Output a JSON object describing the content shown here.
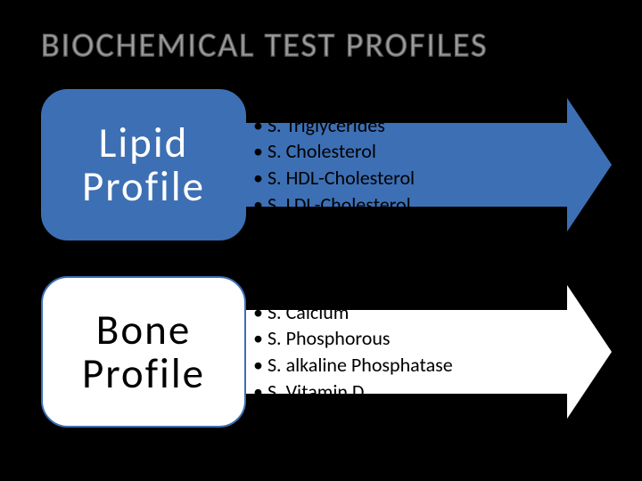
{
  "title": "BIOCHEMICAL TEST PROFILES",
  "profiles": [
    {
      "name_line1": "Lipid",
      "name_line2": "Profile",
      "pill_bg": "#3d6fb4",
      "pill_text_color": "#ffffff",
      "arrow_color": "#3d6fb4",
      "items": [
        "S. Triglycerides",
        "S. Cholesterol",
        "S. HDL-Cholesterol",
        "S. LDL-Cholesterol"
      ]
    },
    {
      "name_line1": "Bone",
      "name_line2": "Profile",
      "pill_bg": "#ffffff",
      "pill_text_color": "#000000",
      "arrow_color": "#ffffff",
      "items": [
        "S. Calcium",
        "S. Phosphorous",
        "S. alkaline Phosphatase",
        "S. Vitamin D"
      ]
    }
  ]
}
